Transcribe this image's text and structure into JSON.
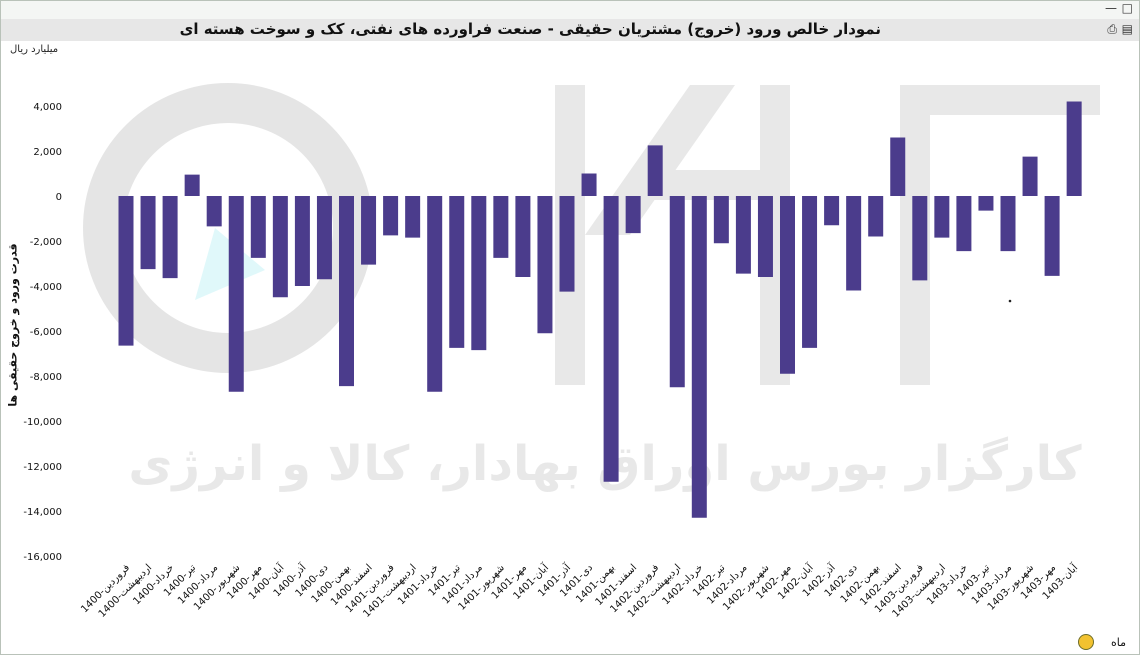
{
  "window": {
    "title": "نمودار خالص ورود (خروج) مشتریان حقیقی - صنعت فراورده های نفتی، کک و سوخت هسته ای",
    "unit_label": "میلیارد ریال",
    "x_unit_label": "ماه",
    "print_icon": "printer-icon",
    "export_icon": "export-icon",
    "maximize_icon": "maximize-icon",
    "minimize_icon": "minimize-icon"
  },
  "watermark": {
    "text": "کارگزار بورس اوراق بهادار، کالا و انرژی"
  },
  "chart_data": {
    "type": "bar",
    "title": "نمودار خالص ورود (خروج) مشتریان حقیقی - صنعت فراورده های نفتی، کک و سوخت هسته ای",
    "ylabel": "قدرت ورود و خروج حقیقی ها",
    "xlabel": "ماه",
    "unit": "میلیارد ریال",
    "ylim": [
      -16000,
      4800
    ],
    "yticks": [
      4000,
      2000,
      0,
      -2000,
      -4000,
      -6000,
      -8000,
      -10000,
      -12000,
      -14000,
      -16000
    ],
    "ytick_labels": [
      "4,000",
      "2,000",
      "0",
      "-2,000",
      "-4,000",
      "-6,000",
      "-8,000",
      "-10,000",
      "-12,000",
      "-14,000",
      "-16,000"
    ],
    "bar_color": "#4b3c8c",
    "grid": false,
    "categories": [
      "1400-فروردین",
      "1400-اردیبهشت",
      "1400-خرداد",
      "1400-تیر",
      "1400-مرداد",
      "1400-شهریور",
      "1400-مهر",
      "1400-آبان",
      "1400-آذر",
      "1400-دی",
      "1400-بهمن",
      "1400-اسفند",
      "1401-فروردین",
      "1401-اردیبهشت",
      "1401-خرداد",
      "1401-تیر",
      "1401-مرداد",
      "1401-شهریور",
      "1401-مهر",
      "1401-آبان",
      "1401-آذر",
      "1401-دی",
      "1401-بهمن",
      "1401-اسفند",
      "1402-فروردین",
      "1402-اردیبهشت",
      "1402-خرداد",
      "1402-تیر",
      "1402-مرداد",
      "1402-شهریور",
      "1402-مهر",
      "1402-آبان",
      "1402-آذر",
      "1402-دی",
      "1402-بهمن",
      "1402-اسفند",
      "1403-فروردین",
      "1403-اردیبهشت",
      "1403-خرداد",
      "1403-تیر",
      "1403-مرداد",
      "1403-شهریور",
      "1403-مهر",
      "1403-آبان"
    ],
    "values": [
      -6650,
      -3250,
      -3650,
      950,
      -1350,
      -8700,
      -2750,
      -4500,
      -4000,
      -3700,
      -8450,
      -3050,
      -1750,
      -1850,
      -8700,
      -6750,
      -6850,
      -2750,
      -3600,
      -6100,
      -4250,
      1000,
      -12700,
      -1650,
      2250,
      -8500,
      -14300,
      -2100,
      -3450,
      -3600,
      -7900,
      -6750,
      -1300,
      -4200,
      -1800,
      2600,
      -3750,
      -1850,
      -2450,
      -650,
      -2450,
      1750,
      -3550,
      4200
    ]
  }
}
